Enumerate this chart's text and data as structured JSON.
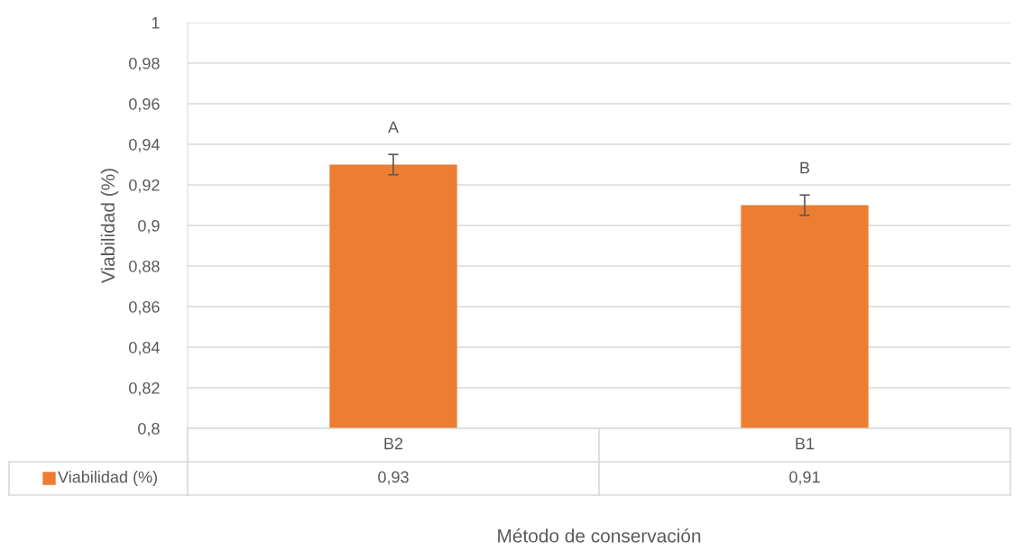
{
  "chart_data": {
    "type": "bar",
    "xlabel": "Método de conservación",
    "ylabel": "Viabilidad (%)",
    "categories": [
      "B2",
      "B1"
    ],
    "series": [
      {
        "name": "Viabilidad (%)",
        "color": "#ed7d31",
        "values": [
          0.93,
          0.91
        ],
        "errors": [
          0.005,
          0.005
        ],
        "value_labels": [
          "0,93",
          "0,91"
        ]
      }
    ],
    "ylim": [
      0.8,
      1
    ],
    "yticks": [
      {
        "value": 0.8,
        "label": "0,8"
      },
      {
        "value": 0.82,
        "label": "0,82"
      },
      {
        "value": 0.84,
        "label": "0,84"
      },
      {
        "value": 0.86,
        "label": "0,86"
      },
      {
        "value": 0.88,
        "label": "0,88"
      },
      {
        "value": 0.9,
        "label": "0,9"
      },
      {
        "value": 0.92,
        "label": "0,92"
      },
      {
        "value": 0.94,
        "label": "0,94"
      },
      {
        "value": 0.96,
        "label": "0,96"
      },
      {
        "value": 0.98,
        "label": "0,98"
      },
      {
        "value": 1,
        "label": "1"
      }
    ],
    "grid": "y",
    "annotations": [
      "A",
      "B"
    ]
  }
}
